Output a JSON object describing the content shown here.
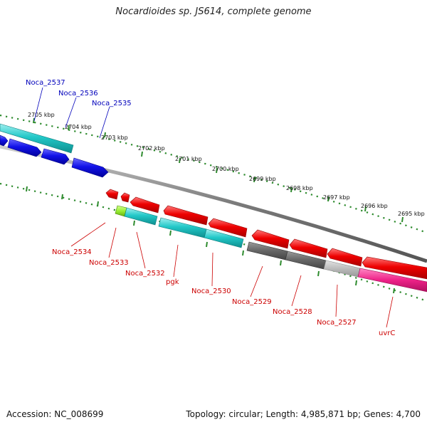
{
  "title": "Nocardioides sp. JS614, complete genome",
  "footer": {
    "accession": "Accession: NC_008699",
    "stats": "Topology: circular; Length: 4,985,871 bp; Genes: 4,700"
  },
  "scale_ticks": [
    {
      "label": "2705 kbp",
      "kbp": 2705
    },
    {
      "label": "2704 kbp",
      "kbp": 2704
    },
    {
      "label": "2703 kbp",
      "kbp": 2703
    },
    {
      "label": "2702 kbp",
      "kbp": 2702
    },
    {
      "label": "2701 kbp",
      "kbp": 2701
    },
    {
      "label": "2700 kbp",
      "kbp": 2700
    },
    {
      "label": "2699 kbp",
      "kbp": 2699
    },
    {
      "label": "2698 kbp",
      "kbp": 2698
    },
    {
      "label": "2697 kbp",
      "kbp": 2697
    },
    {
      "label": "2696 kbp",
      "kbp": 2696
    },
    {
      "label": "2695 kbp",
      "kbp": 2695
    }
  ],
  "colors": {
    "forward_label": "#0000bb",
    "reverse_label": "#cc0000",
    "backbone": "#8a8a8a",
    "ticks": "#2e8b2e",
    "blue": "#1010e0",
    "cyan": "#22c8c8",
    "red": "#ee0000",
    "green": "#99ee33",
    "dark_gray": "#666666",
    "light_gray": "#bbbbbb",
    "pink": "#ee2288"
  },
  "forward_labels": [
    "Noca_2537",
    "Noca_2536",
    "Noca_2535"
  ],
  "reverse_labels": [
    "Noca_2534",
    "Noca_2533",
    "Noca_2532",
    "pgk",
    "Noca_2530",
    "Noca_2529",
    "Noca_2528",
    "Noca_2527",
    "uvrC"
  ]
}
